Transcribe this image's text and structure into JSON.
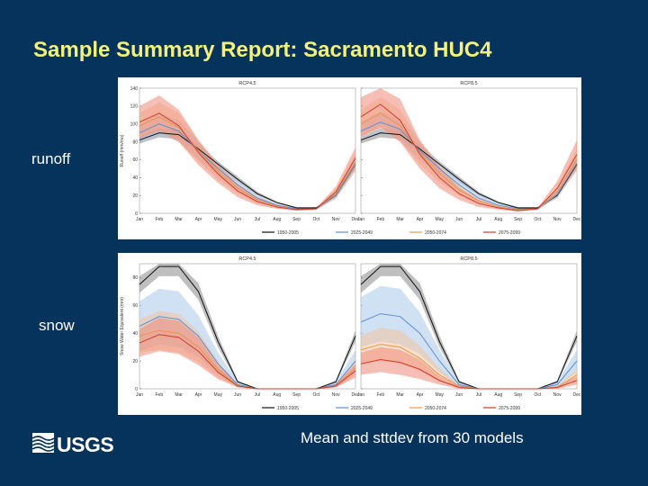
{
  "slide": {
    "title": "Sample Summary Report: Sacramento HUC4",
    "label_runoff": "runoff",
    "label_snow": "snow",
    "footnote": "Mean and sttdev from 30 models",
    "logo_text": "USGS"
  },
  "colors": {
    "background": "#06335c",
    "title": "#f3f17a",
    "text": "#ffffff",
    "series": [
      "#111111",
      "#5b8fd6",
      "#e8964a",
      "#d63a2a"
    ],
    "bands": [
      "#8a8a8a",
      "#a9c8ea",
      "#f3c49e",
      "#ee8a7a"
    ]
  },
  "chart_data": [
    {
      "type": "line",
      "name": "runoff",
      "ylabel": "Runoff (mm/mo)",
      "categories": [
        "Jan",
        "Feb",
        "Mar",
        "Apr",
        "May",
        "Jun",
        "Jul",
        "Aug",
        "Sep",
        "Oct",
        "Nov",
        "Dec"
      ],
      "ylim": [
        0,
        140
      ],
      "yticks": [
        0,
        20,
        40,
        60,
        80,
        100,
        120,
        140
      ],
      "legend": [
        "1950-2005",
        "2025-2049",
        "2050-2074",
        "2075-2099"
      ],
      "panels": [
        {
          "title": "RCP4.5",
          "series": [
            {
              "values": [
                82,
                90,
                88,
                72,
                55,
                38,
                22,
                12,
                6,
                6,
                20,
                55
              ],
              "spread": [
                4,
                5,
                5,
                4,
                3,
                3,
                2,
                1,
                1,
                1,
                2,
                4
              ]
            },
            {
              "values": [
                90,
                100,
                92,
                70,
                50,
                32,
                17,
                9,
                5,
                5,
                20,
                55
              ],
              "spread": [
                10,
                12,
                12,
                10,
                8,
                6,
                4,
                2,
                1,
                1,
                4,
                8
              ]
            },
            {
              "values": [
                98,
                108,
                96,
                70,
                47,
                28,
                15,
                8,
                4,
                5,
                22,
                58
              ],
              "spread": [
                14,
                16,
                16,
                12,
                9,
                6,
                4,
                2,
                1,
                1,
                5,
                10
              ]
            },
            {
              "values": [
                102,
                112,
                98,
                68,
                44,
                25,
                13,
                7,
                4,
                5,
                24,
                62
              ],
              "spread": [
                18,
                20,
                18,
                14,
                10,
                7,
                4,
                2,
                1,
                1,
                6,
                12
              ]
            }
          ]
        },
        {
          "title": "RCP8.5",
          "series": [
            {
              "values": [
                82,
                90,
                88,
                72,
                55,
                38,
                22,
                12,
                6,
                6,
                20,
                55
              ],
              "spread": [
                4,
                5,
                5,
                4,
                3,
                3,
                2,
                1,
                1,
                1,
                2,
                4
              ]
            },
            {
              "values": [
                92,
                102,
                94,
                70,
                50,
                32,
                17,
                9,
                5,
                5,
                21,
                56
              ],
              "spread": [
                10,
                12,
                12,
                10,
                8,
                6,
                4,
                2,
                1,
                1,
                4,
                8
              ]
            },
            {
              "values": [
                100,
                112,
                98,
                68,
                45,
                26,
                14,
                7,
                4,
                5,
                24,
                60
              ],
              "spread": [
                16,
                18,
                18,
                13,
                10,
                6,
                4,
                2,
                1,
                1,
                6,
                12
              ]
            },
            {
              "values": [
                108,
                122,
                104,
                66,
                40,
                22,
                11,
                6,
                3,
                5,
                28,
                66
              ],
              "spread": [
                22,
                26,
                24,
                16,
                12,
                7,
                4,
                2,
                1,
                1,
                8,
                16
              ]
            }
          ]
        }
      ]
    },
    {
      "type": "line",
      "name": "snow",
      "ylabel": "Snow Water Equivalent (mm)",
      "categories": [
        "Jan",
        "Feb",
        "Mar",
        "Apr",
        "May",
        "Jun",
        "Jul",
        "Aug",
        "Sep",
        "Oct",
        "Nov",
        "Dec"
      ],
      "ylim": [
        0,
        90
      ],
      "yticks": [
        0,
        20,
        40,
        60,
        80
      ],
      "legend": [
        "1950-2005",
        "2025-2049",
        "2050-2074",
        "2075-2099"
      ],
      "panels": [
        {
          "title": "RCP4.5",
          "series": [
            {
              "values": [
                75,
                88,
                88,
                70,
                34,
                5,
                0,
                0,
                0,
                0,
                5,
                38
              ],
              "spread": [
                6,
                7,
                7,
                6,
                4,
                1,
                0,
                0,
                0,
                0,
                1,
                4
              ]
            },
            {
              "values": [
                45,
                52,
                50,
                38,
                18,
                3,
                0,
                0,
                0,
                0,
                3,
                20
              ],
              "spread": [
                18,
                20,
                20,
                15,
                8,
                2,
                0,
                0,
                0,
                0,
                2,
                8
              ]
            },
            {
              "values": [
                38,
                42,
                40,
                30,
                14,
                2,
                0,
                0,
                0,
                0,
                2,
                15
              ],
              "spread": [
                12,
                14,
                14,
                11,
                6,
                1,
                0,
                0,
                0,
                0,
                1,
                6
              ]
            },
            {
              "values": [
                33,
                39,
                37,
                27,
                12,
                2,
                0,
                0,
                0,
                0,
                2,
                13
              ],
              "spread": [
                10,
                12,
                12,
                10,
                5,
                1,
                0,
                0,
                0,
                0,
                1,
                5
              ]
            }
          ]
        },
        {
          "title": "RCP8.5",
          "series": [
            {
              "values": [
                75,
                88,
                88,
                70,
                34,
                5,
                0,
                0,
                0,
                0,
                5,
                38
              ],
              "spread": [
                6,
                7,
                7,
                6,
                4,
                1,
                0,
                0,
                0,
                0,
                1,
                4
              ]
            },
            {
              "values": [
                48,
                54,
                52,
                40,
                20,
                3,
                0,
                0,
                0,
                0,
                3,
                20
              ],
              "spread": [
                18,
                20,
                20,
                15,
                8,
                2,
                0,
                0,
                0,
                0,
                2,
                8
              ]
            },
            {
              "values": [
                28,
                32,
                30,
                22,
                10,
                2,
                0,
                0,
                0,
                0,
                1,
                10
              ],
              "spread": [
                10,
                12,
                12,
                9,
                5,
                1,
                0,
                0,
                0,
                0,
                1,
                4
              ]
            },
            {
              "values": [
                18,
                21,
                19,
                14,
                6,
                1,
                0,
                0,
                0,
                0,
                1,
                6
              ],
              "spread": [
                8,
                9,
                9,
                7,
                3,
                1,
                0,
                0,
                0,
                0,
                1,
                3
              ]
            }
          ]
        }
      ]
    }
  ]
}
